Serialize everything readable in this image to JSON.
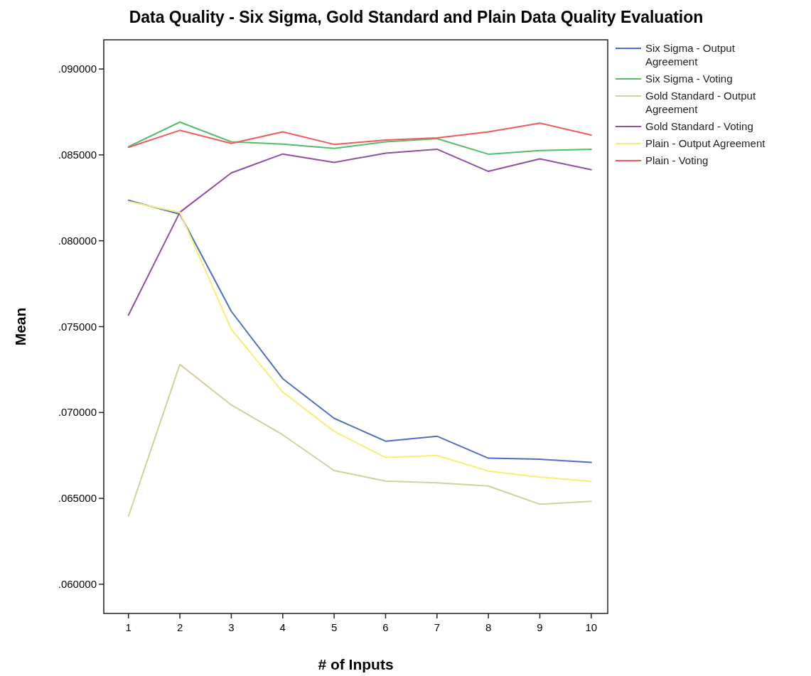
{
  "chart_data": {
    "type": "line",
    "title": "Data Quality - Six Sigma, Gold Standard and Plain Data Quality Evaluation",
    "xlabel": "# of Inputs",
    "ylabel": "Mean",
    "x": [
      1,
      2,
      3,
      4,
      5,
      6,
      7,
      8,
      9,
      10
    ],
    "xlim": [
      0.52,
      10.32
    ],
    "xticks": [
      1,
      2,
      3,
      4,
      5,
      6,
      7,
      8,
      9,
      10
    ],
    "ylim": [
      0.0583,
      0.0917
    ],
    "yticks": [
      {
        "value": 0.06,
        "label": ".060000"
      },
      {
        "value": 0.065,
        "label": ".065000"
      },
      {
        "value": 0.07,
        "label": ".070000"
      },
      {
        "value": 0.075,
        "label": ".075000"
      },
      {
        "value": 0.08,
        "label": ".080000"
      },
      {
        "value": 0.085,
        "label": ".085000"
      },
      {
        "value": 0.09,
        "label": ".090000"
      }
    ],
    "grid": false,
    "legend": "right",
    "marker": "none",
    "line_style": "solid",
    "series": [
      {
        "name": "Six Sigma - Output Agreement",
        "color": "#4f6fc4",
        "values": [
          0.08236,
          0.08155,
          0.07589,
          0.07197,
          0.06966,
          0.06833,
          0.06862,
          0.06734,
          0.06728,
          0.06709
        ]
      },
      {
        "name": "Six Sigma - Voting",
        "color": "#52bf68",
        "values": [
          0.08548,
          0.08691,
          0.08576,
          0.08563,
          0.08538,
          0.08576,
          0.08595,
          0.08504,
          0.08525,
          0.08533
        ]
      },
      {
        "name": "Gold Standard - Output Agreement",
        "color": "#d4cfa0",
        "values": [
          0.06396,
          0.0728,
          0.07044,
          0.0687,
          0.06662,
          0.06601,
          0.06591,
          0.06572,
          0.06466,
          0.06483
        ]
      },
      {
        "name": "Gold Standard - Voting",
        "color": "#8e4fa6",
        "values": [
          0.07567,
          0.08166,
          0.08395,
          0.08505,
          0.08456,
          0.0851,
          0.08533,
          0.08404,
          0.08477,
          0.08414
        ]
      },
      {
        "name": "Plain - Output Agreement",
        "color": "#f5ef78",
        "values": [
          0.08228,
          0.08165,
          0.07485,
          0.07119,
          0.0689,
          0.06738,
          0.0675,
          0.06659,
          0.06624,
          0.06599
        ]
      },
      {
        "name": "Plain - Voting",
        "color": "#f05a5a",
        "values": [
          0.08544,
          0.08643,
          0.08567,
          0.08634,
          0.08561,
          0.08586,
          0.08599,
          0.08634,
          0.08685,
          0.08615
        ]
      }
    ]
  }
}
